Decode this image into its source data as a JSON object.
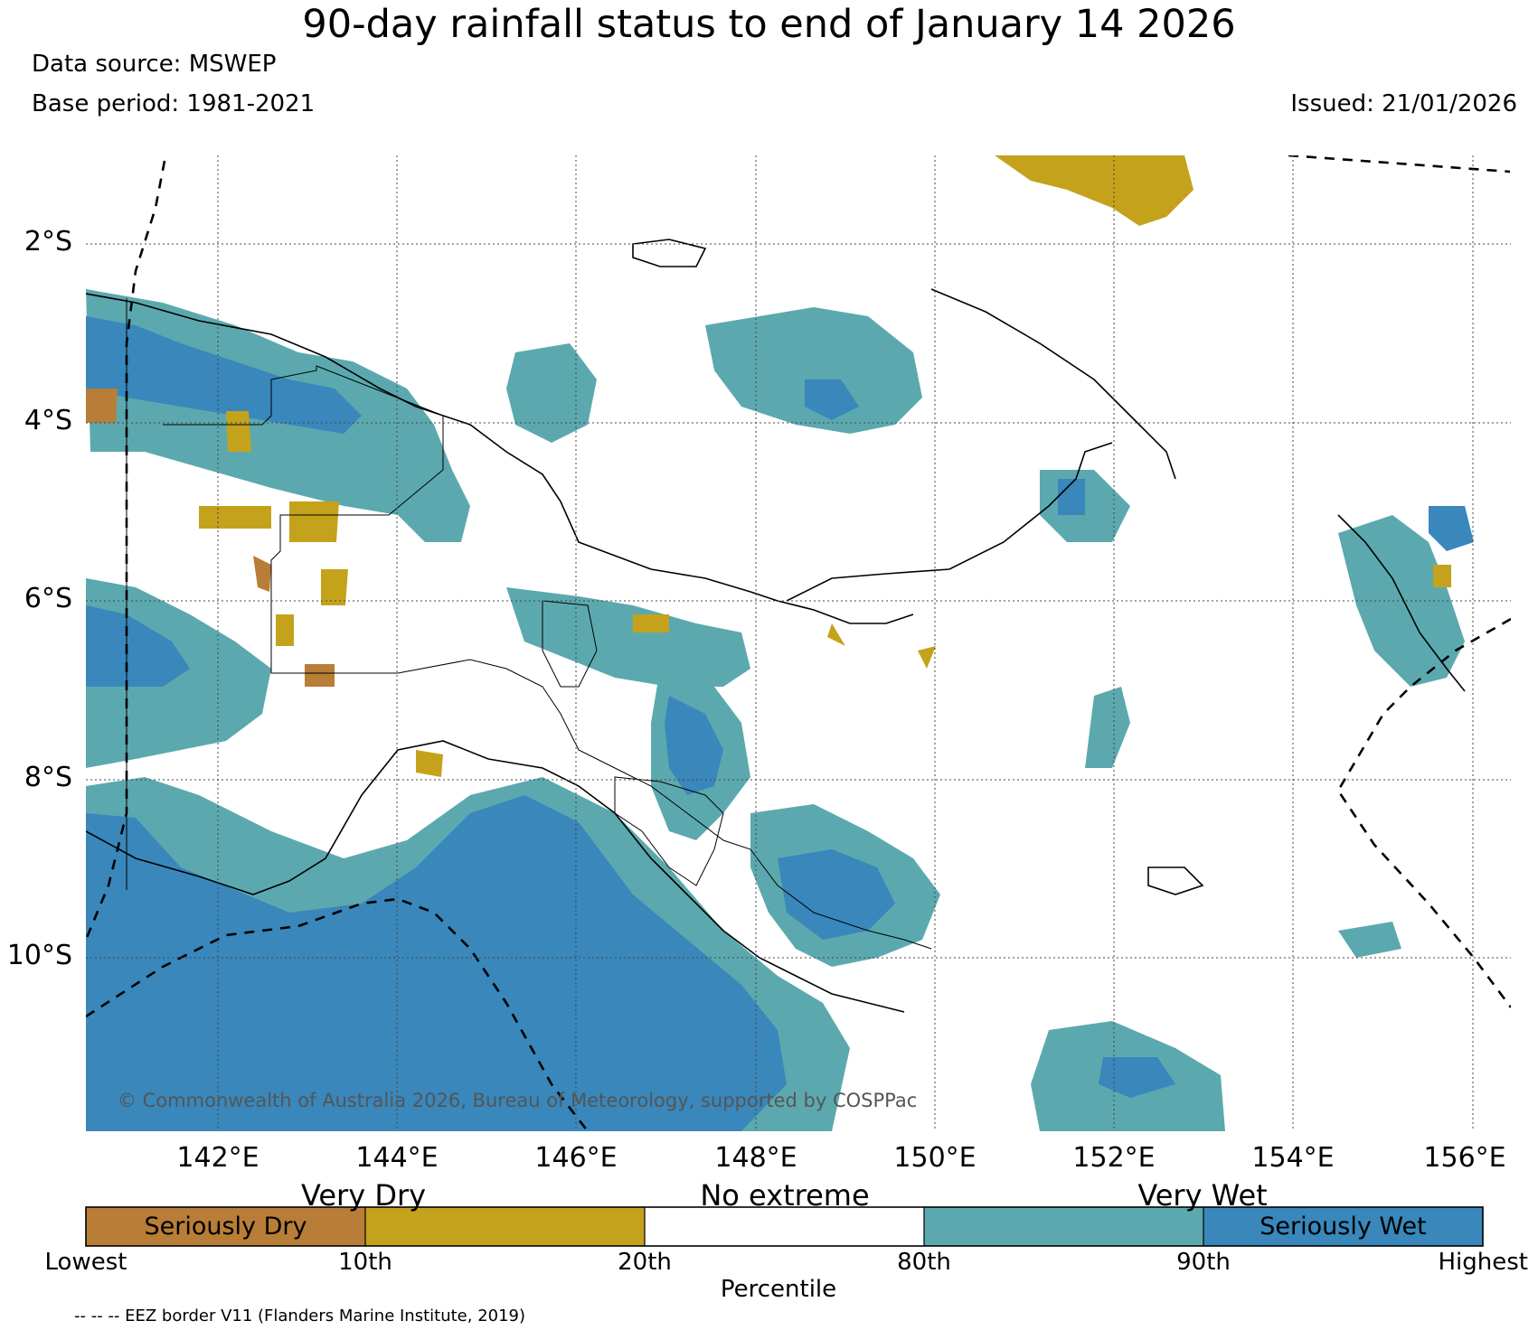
{
  "title": "90-day rainfall status to end of January 14 2026",
  "data_source": "Data source: MSWEP",
  "base_period": "Base period: 1981-2021",
  "issued": "Issued: 21/01/2026",
  "copyright": "© Commonwealth of Australia 2026, Bureau of Meteorology, supported by COSPPac",
  "latitude_labels": [
    "2°S",
    "4°S",
    "6°S",
    "8°S",
    "10°S"
  ],
  "longitude_labels": [
    "142°E",
    "144°E",
    "146°E",
    "148°E",
    "150°E",
    "152°E",
    "154°E",
    "156°E"
  ],
  "legend": {
    "categories": [
      "Very Dry",
      "No extreme",
      "Very Wet"
    ],
    "segments": [
      {
        "label": "Seriously Dry",
        "color": "#b87d37"
      },
      {
        "label": "",
        "color": "#c4a21c"
      },
      {
        "label": "",
        "color": "#ffffff"
      },
      {
        "label": "",
        "color": "#5ba9af"
      },
      {
        "label": "Seriously Wet",
        "color": "#3987bb"
      }
    ],
    "ticks": [
      "Lowest",
      "10th",
      "20th",
      "80th",
      "90th",
      "Highest"
    ],
    "axis_label": "Percentile"
  },
  "eez_note": "-- -- -- EEZ border V11 (Flanders Marine Institute, 2019)",
  "colors": {
    "seriously_dry": "#b87d37",
    "very_dry": "#c4a21c",
    "very_wet": "#5ba9af",
    "seriously_wet": "#3987bb"
  }
}
